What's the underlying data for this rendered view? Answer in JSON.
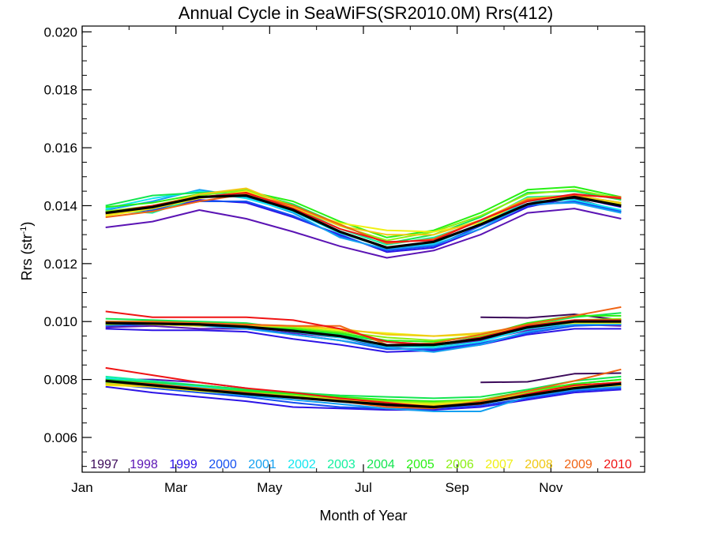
{
  "chart_data": {
    "type": "line",
    "title": "Annual Cycle in SeaWiFS(SR2010.0M) Rrs(412)",
    "xlabel": "Month of Year",
    "ylabel_main": "Rrs (str",
    "ylabel_sup": "-1",
    "ylabel_tail": ")",
    "xlim": [
      0,
      12
    ],
    "ylim": [
      0.0048,
      0.0202
    ],
    "x_ticks": [
      {
        "value": 0,
        "label": "Jan"
      },
      {
        "value": 2,
        "label": "Mar"
      },
      {
        "value": 4,
        "label": "May"
      },
      {
        "value": 6,
        "label": "Jul"
      },
      {
        "value": 8,
        "label": "Sep"
      },
      {
        "value": 10,
        "label": "Nov"
      }
    ],
    "y_ticks": [
      {
        "value": 0.006,
        "label": "0.006"
      },
      {
        "value": 0.008,
        "label": "0.008"
      },
      {
        "value": 0.01,
        "label": "0.010"
      },
      {
        "value": 0.012,
        "label": "0.012"
      },
      {
        "value": 0.014,
        "label": "0.014"
      },
      {
        "value": 0.016,
        "label": "0.016"
      },
      {
        "value": 0.018,
        "label": "0.018"
      },
      {
        "value": 0.02,
        "label": "0.020"
      }
    ],
    "months": [
      0.5,
      1.5,
      2.5,
      3.5,
      4.5,
      5.5,
      6.5,
      7.5,
      8.5,
      9.5,
      10.5,
      11.5
    ],
    "legend": [
      {
        "label": "1997",
        "color": "#3c0a5a"
      },
      {
        "label": "1998",
        "color": "#5b14b4"
      },
      {
        "label": "1999",
        "color": "#2d14e6"
      },
      {
        "label": "2000",
        "color": "#1450f0"
      },
      {
        "label": "2001",
        "color": "#14a0f0"
      },
      {
        "label": "2002",
        "color": "#14e6f0"
      },
      {
        "label": "2003",
        "color": "#14f0a0"
      },
      {
        "label": "2004",
        "color": "#14e650"
      },
      {
        "label": "2005",
        "color": "#28f014"
      },
      {
        "label": "2006",
        "color": "#8cf014"
      },
      {
        "label": "2007",
        "color": "#f0f014"
      },
      {
        "label": "2008",
        "color": "#f0c814"
      },
      {
        "label": "2009",
        "color": "#f06414"
      },
      {
        "label": "2010",
        "color": "#f01414"
      }
    ],
    "mean_color": "#000000",
    "groups": [
      {
        "mean": [
          0.01375,
          0.01395,
          0.0143,
          0.01435,
          0.01385,
          0.0131,
          0.01255,
          0.01275,
          0.01335,
          0.01405,
          0.0143,
          0.014
        ],
        "series": [
          {
            "color": "#3c0a5a",
            "values": [
              null,
              null,
              null,
              null,
              null,
              null,
              null,
              null,
              null,
              0.014,
              0.01425,
              0.0138
            ]
          },
          {
            "color": "#5b14b4",
            "values": [
              0.01325,
              0.01345,
              0.01385,
              0.01355,
              0.0131,
              0.0126,
              0.0122,
              0.01245,
              0.013,
              0.01375,
              0.0139,
              0.01355
            ]
          },
          {
            "color": "#2d14e6",
            "values": [
              0.0138,
              0.0139,
              0.0142,
              0.0141,
              0.0136,
              0.013,
              0.0124,
              0.01255,
              0.0132,
              0.01395,
              0.0143,
              0.01395
            ]
          },
          {
            "color": "#1450f0",
            "values": [
              0.0137,
              0.01385,
              0.01415,
              0.01415,
              0.01365,
              0.01295,
              0.01245,
              0.0126,
              0.0133,
              0.014,
              0.01415,
              0.0138
            ]
          },
          {
            "color": "#14a0f0",
            "values": [
              0.01385,
              0.01415,
              0.01455,
              0.0143,
              0.01375,
              0.0129,
              0.0125,
              0.01265,
              0.0132,
              0.01405,
              0.0141,
              0.01375
            ]
          },
          {
            "color": "#14e6f0",
            "values": [
              0.0139,
              0.01425,
              0.0145,
              0.01425,
              0.0138,
              0.01305,
              0.01255,
              0.0127,
              0.01335,
              0.01415,
              0.0142,
              0.01385
            ]
          },
          {
            "color": "#14f0a0",
            "values": [
              0.01385,
              0.01375,
              0.0143,
              0.0144,
              0.01395,
              0.0132,
              0.01265,
              0.0129,
              0.01345,
              0.0143,
              0.01435,
              0.0141
            ]
          },
          {
            "color": "#14e650",
            "values": [
              0.014,
              0.01435,
              0.01445,
              0.0145,
              0.01405,
              0.01335,
              0.0127,
              0.013,
              0.0136,
              0.01445,
              0.0145,
              0.0142
            ]
          },
          {
            "color": "#28f014",
            "values": [
              0.01395,
              0.0141,
              0.0144,
              0.0145,
              0.01415,
              0.01345,
              0.0129,
              0.01315,
              0.01375,
              0.01455,
              0.01465,
              0.0143
            ]
          },
          {
            "color": "#8cf014",
            "values": [
              0.0138,
              0.014,
              0.01435,
              0.01455,
              0.014,
              0.0133,
              0.0128,
              0.0131,
              0.01365,
              0.0144,
              0.01455,
              0.01425
            ]
          },
          {
            "color": "#f0f014",
            "values": [
              0.01365,
              0.0139,
              0.01425,
              0.0145,
              0.0139,
              0.0134,
              0.01315,
              0.0131,
              0.0134,
              0.0142,
              0.0143,
              0.01405
            ]
          },
          {
            "color": "#f0c814",
            "values": [
              0.0137,
              0.01395,
              0.0144,
              0.0146,
              0.01395,
              0.0133,
              0.013,
              0.013,
              0.0135,
              0.01425,
              0.01435,
              0.0141
            ]
          },
          {
            "color": "#f06414",
            "values": [
              0.0136,
              0.0138,
              0.01415,
              0.0144,
              0.014,
              0.01335,
              0.0127,
              0.01285,
              0.0135,
              0.0142,
              0.01435,
              0.0143
            ]
          },
          {
            "color": "#f01414",
            "values": [
              0.01375,
              0.014,
              0.0143,
              0.01445,
              0.0139,
              0.0132,
              0.01275,
              0.0128,
              0.0135,
              0.01415,
              0.0144,
              0.01425
            ]
          }
        ]
      },
      {
        "mean": [
          0.00995,
          0.00993,
          0.0099,
          0.00982,
          0.00968,
          0.0095,
          0.00918,
          0.0092,
          0.0094,
          0.0098,
          0.01,
          0.01
        ],
        "series": [
          {
            "color": "#3c0a5a",
            "values": [
              null,
              null,
              null,
              null,
              null,
              null,
              null,
              null,
              0.01015,
              0.01013,
              0.01025,
              0.01005
            ]
          },
          {
            "color": "#5b14b4",
            "values": [
              0.0098,
              0.00985,
              0.00975,
              0.00975,
              0.0096,
              0.00945,
              0.0091,
              0.00915,
              0.00935,
              0.0097,
              0.0099,
              0.00985
            ]
          },
          {
            "color": "#2d14e6",
            "values": [
              0.00975,
              0.0097,
              0.0097,
              0.00965,
              0.0094,
              0.0092,
              0.00895,
              0.009,
              0.0092,
              0.00955,
              0.00975,
              0.00975
            ]
          },
          {
            "color": "#1450f0",
            "values": [
              0.00985,
              0.0099,
              0.00985,
              0.0098,
              0.00955,
              0.00935,
              0.00905,
              0.00905,
              0.00925,
              0.0096,
              0.00985,
              0.0099
            ]
          },
          {
            "color": "#14a0f0",
            "values": [
              0.0099,
              0.00995,
              0.00985,
              0.00975,
              0.00955,
              0.00935,
              0.0091,
              0.00895,
              0.0092,
              0.00965,
              0.0099,
              0.0099
            ]
          },
          {
            "color": "#14e6f0",
            "values": [
              0.00995,
              0.00995,
              0.0099,
              0.00985,
              0.00965,
              0.00945,
              0.00915,
              0.0091,
              0.0093,
              0.00975,
              0.00995,
              0.00995
            ]
          },
          {
            "color": "#14f0a0",
            "values": [
              0.01,
              0.01,
              0.00995,
              0.0099,
              0.0097,
              0.0095,
              0.0092,
              0.00915,
              0.0094,
              0.00985,
              0.01005,
              0.01005
            ]
          },
          {
            "color": "#14e650",
            "values": [
              0.0101,
              0.01005,
              0.01,
              0.00995,
              0.00975,
              0.00955,
              0.0093,
              0.0092,
              0.00945,
              0.0099,
              0.01015,
              0.0103
            ]
          },
          {
            "color": "#28f014",
            "values": [
              0.01,
              0.01,
              0.00995,
              0.0099,
              0.00975,
              0.0096,
              0.00935,
              0.0093,
              0.0095,
              0.00995,
              0.0102,
              0.0102
            ]
          },
          {
            "color": "#8cf014",
            "values": [
              0.0099,
              0.00995,
              0.0099,
              0.00985,
              0.0098,
              0.00965,
              0.00945,
              0.00935,
              0.0095,
              0.0099,
              0.01005,
              0.0101
            ]
          },
          {
            "color": "#f0f014",
            "values": [
              0.00995,
              0.0099,
              0.00985,
              0.0099,
              0.00985,
              0.0097,
              0.0096,
              0.0095,
              0.00955,
              0.00985,
              0.00995,
              0.00995
            ]
          },
          {
            "color": "#f0c814",
            "values": [
              0.01,
              0.00995,
              0.0099,
              0.00985,
              0.00985,
              0.00975,
              0.00955,
              0.0095,
              0.0096,
              0.00985,
              0.01,
              0.01
            ]
          },
          {
            "color": "#f06414",
            "values": [
              0.01,
              0.01,
              0.00995,
              0.0099,
              0.00985,
              0.00985,
              0.0092,
              0.00925,
              0.00955,
              0.0099,
              0.0102,
              0.0105
            ]
          },
          {
            "color": "#f01414",
            "values": [
              0.01035,
              0.01015,
              0.01015,
              0.01015,
              0.01005,
              0.00975,
              0.0093,
              0.0092,
              0.00945,
              0.00985,
              0.01005,
              0.01005
            ]
          }
        ]
      },
      {
        "mean": [
          0.00795,
          0.0078,
          0.00765,
          0.0075,
          0.00738,
          0.00725,
          0.00713,
          0.00705,
          0.00718,
          0.00745,
          0.0077,
          0.00785
        ],
        "series": [
          {
            "color": "#3c0a5a",
            "values": [
              null,
              null,
              null,
              null,
              null,
              null,
              null,
              null,
              0.0079,
              0.00792,
              0.0082,
              0.00822
            ]
          },
          {
            "color": "#5b14b4",
            "values": [
              0.008,
              0.008,
              0.0079,
              0.0077,
              0.0074,
              0.00725,
              0.0071,
              0.00705,
              0.0072,
              0.00745,
              0.0077,
              0.0078
            ]
          },
          {
            "color": "#2d14e6",
            "values": [
              0.00775,
              0.00755,
              0.0074,
              0.00725,
              0.00705,
              0.007,
              0.00695,
              0.00695,
              0.00705,
              0.0073,
              0.00755,
              0.00765
            ]
          },
          {
            "color": "#1450f0",
            "values": [
              0.00785,
              0.0077,
              0.00755,
              0.0074,
              0.0072,
              0.00705,
              0.007,
              0.007,
              0.0071,
              0.00735,
              0.0076,
              0.0077
            ]
          },
          {
            "color": "#14a0f0",
            "values": [
              0.0079,
              0.00775,
              0.0076,
              0.00745,
              0.0073,
              0.00715,
              0.007,
              0.0069,
              0.0069,
              0.0074,
              0.00765,
              0.00775
            ]
          },
          {
            "color": "#14e6f0",
            "values": [
              0.00805,
              0.0079,
              0.00775,
              0.0076,
              0.00745,
              0.0073,
              0.00715,
              0.00705,
              0.00715,
              0.00745,
              0.00775,
              0.0079
            ]
          },
          {
            "color": "#14f0a0",
            "values": [
              0.0081,
              0.00795,
              0.0078,
              0.00765,
              0.0075,
              0.00735,
              0.00725,
              0.00715,
              0.00725,
              0.00755,
              0.00785,
              0.008
            ]
          },
          {
            "color": "#14e650",
            "values": [
              0.008,
              0.0079,
              0.0078,
              0.00765,
              0.00755,
              0.00745,
              0.0074,
              0.00735,
              0.0074,
              0.00765,
              0.00795,
              0.0081
            ]
          },
          {
            "color": "#28f014",
            "values": [
              0.00795,
              0.00785,
              0.0077,
              0.0076,
              0.0075,
              0.0074,
              0.0073,
              0.00725,
              0.0073,
              0.0076,
              0.00785,
              0.008
            ]
          },
          {
            "color": "#8cf014",
            "values": [
              0.0079,
              0.0078,
              0.00765,
              0.00755,
              0.00745,
              0.00735,
              0.00725,
              0.0072,
              0.0073,
              0.00755,
              0.0078,
              0.0079
            ]
          },
          {
            "color": "#f0f014",
            "values": [
              0.0078,
              0.00775,
              0.0076,
              0.0075,
              0.0074,
              0.0073,
              0.0072,
              0.00715,
              0.00725,
              0.0075,
              0.0077,
              0.0078
            ]
          },
          {
            "color": "#f0c814",
            "values": [
              0.00785,
              0.00775,
              0.00765,
              0.0075,
              0.0074,
              0.0073,
              0.00715,
              0.0071,
              0.00725,
              0.0075,
              0.00775,
              0.0079
            ]
          },
          {
            "color": "#f06414",
            "values": [
              0.00795,
              0.00785,
              0.0077,
              0.00755,
              0.0074,
              0.00725,
              0.00705,
              0.007,
              0.00725,
              0.0076,
              0.00795,
              0.00835
            ]
          },
          {
            "color": "#f01414",
            "values": [
              0.0084,
              0.00815,
              0.0079,
              0.0077,
              0.00755,
              0.00735,
              0.0072,
              0.00705,
              0.00715,
              0.0075,
              0.0078,
              0.0079
            ]
          }
        ]
      }
    ]
  }
}
